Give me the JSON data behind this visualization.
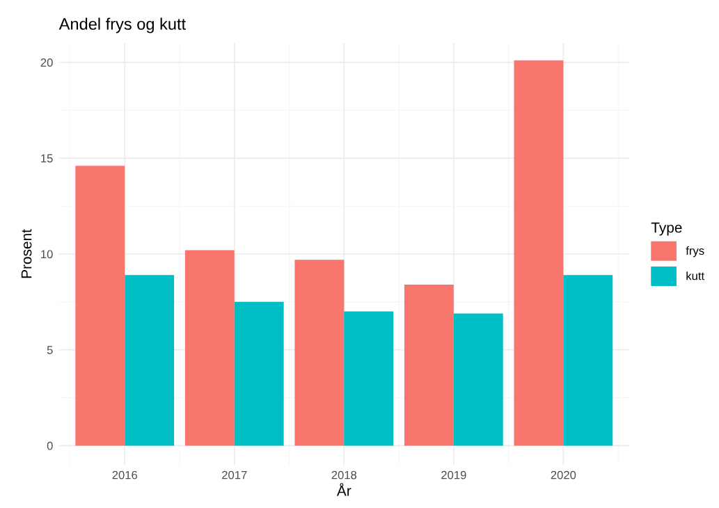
{
  "chart_data": {
    "type": "bar",
    "title": "Andel frys og kutt",
    "xlabel": "År",
    "ylabel": "Prosent",
    "legend_title": "Type",
    "categories": [
      "2016",
      "2017",
      "2018",
      "2019",
      "2020"
    ],
    "series": [
      {
        "name": "frys",
        "color": "#f8766d",
        "values": [
          14.6,
          10.2,
          9.7,
          8.4,
          20.1
        ]
      },
      {
        "name": "kutt",
        "color": "#00bfc4",
        "values": [
          8.9,
          7.5,
          7.0,
          6.9,
          8.9
        ]
      }
    ],
    "ylim": [
      -1,
      21
    ],
    "yticks": [
      0,
      5,
      10,
      15,
      20
    ],
    "grid": true,
    "legend": "right"
  }
}
